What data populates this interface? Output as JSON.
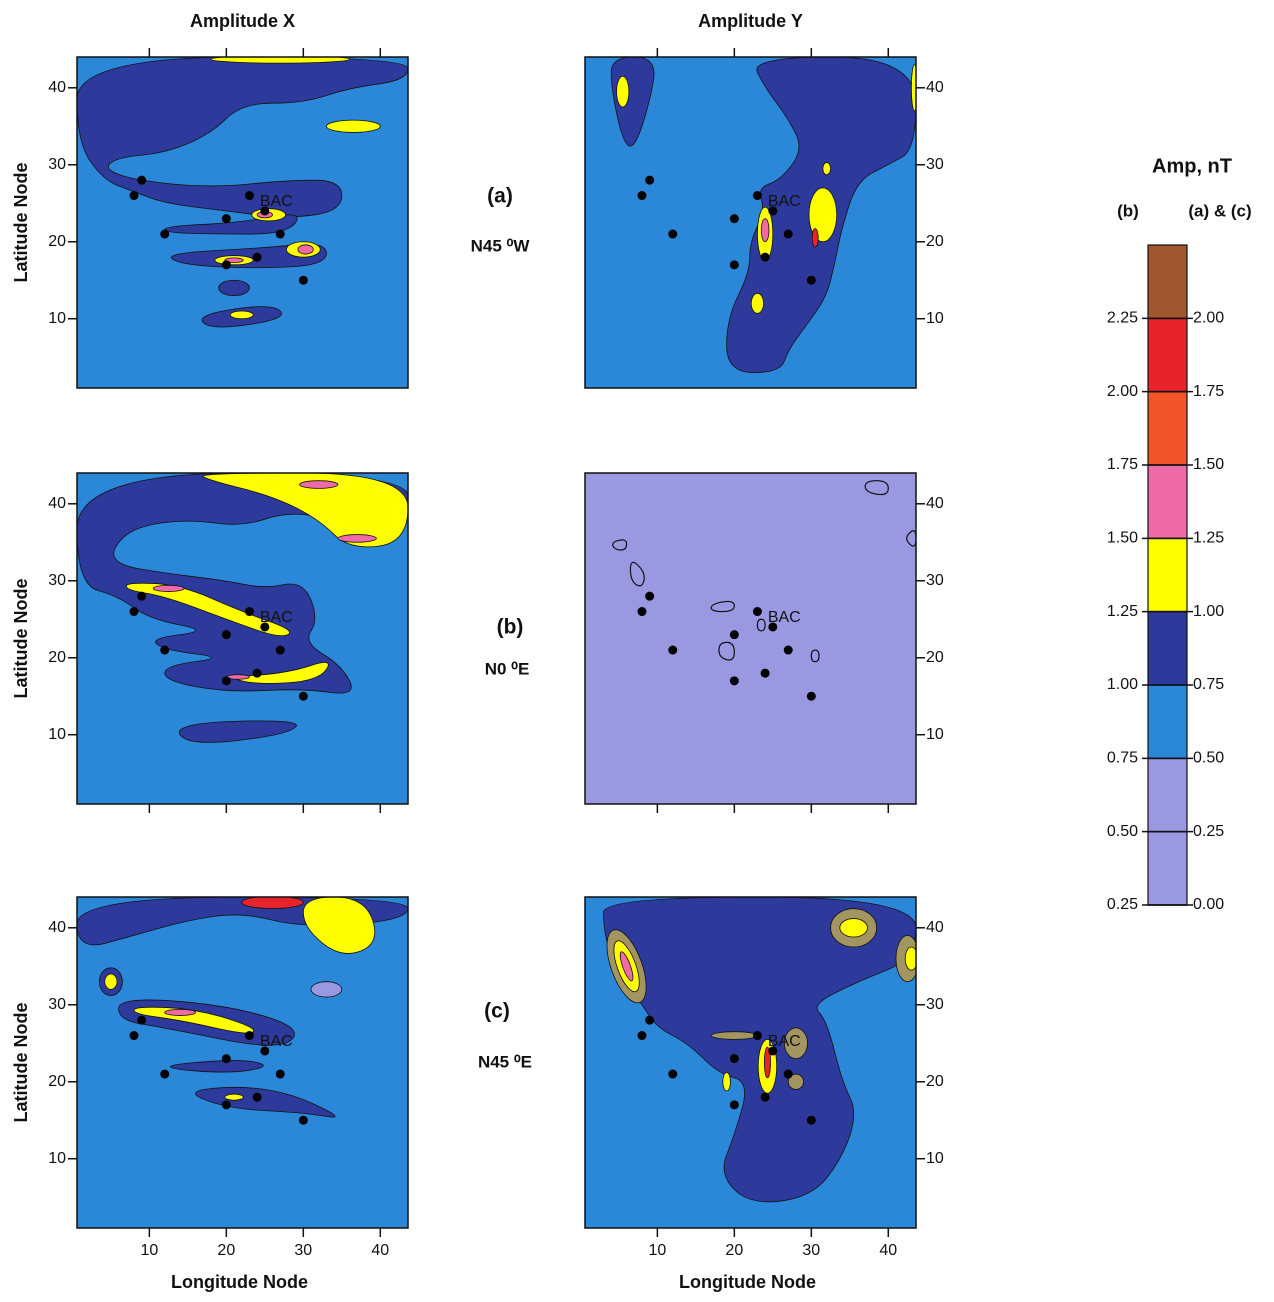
{
  "chart_data": [
    {
      "type": "scatter",
      "title": "Amplitude X",
      "ylabel": "Latitude Node",
      "x": [
        8,
        9,
        12,
        20,
        20,
        23,
        24,
        25,
        27,
        30
      ],
      "y": [
        26,
        28,
        21,
        23,
        17,
        26,
        18,
        24,
        21,
        15
      ],
      "annotations": [
        "BAC"
      ],
      "xlim": [
        0.6,
        43.6
      ],
      "ylim": [
        1,
        44
      ],
      "xticks": [
        10,
        20,
        30,
        40
      ],
      "yticks": [
        10,
        20,
        30,
        40
      ],
      "xtick_side": "top",
      "ytick_side": "left",
      "show_xtick_labels": false,
      "background": "#2b88d9"
    },
    {
      "type": "scatter",
      "title": "Amplitude Y",
      "x": [
        8,
        9,
        12,
        20,
        20,
        23,
        24,
        25,
        27,
        30
      ],
      "y": [
        26,
        28,
        21,
        23,
        17,
        26,
        18,
        24,
        21,
        15
      ],
      "annotations": [
        "BAC"
      ],
      "xlim": [
        0.6,
        43.6
      ],
      "ylim": [
        1,
        44
      ],
      "xticks": [
        10,
        20,
        30,
        40
      ],
      "yticks": [
        10,
        20,
        30,
        40
      ],
      "xtick_side": "top",
      "ytick_side": "right",
      "show_xtick_labels": false,
      "background": "#2b88d9"
    },
    {
      "type": "scatter",
      "ylabel": "Latitude Node",
      "x": [
        8,
        9,
        12,
        20,
        20,
        23,
        24,
        25,
        27,
        30
      ],
      "y": [
        26,
        28,
        21,
        23,
        17,
        26,
        18,
        24,
        21,
        15
      ],
      "annotations": [
        "BAC"
      ],
      "xlim": [
        0.6,
        43.6
      ],
      "ylim": [
        1,
        44
      ],
      "xticks": [
        10,
        20,
        30,
        40
      ],
      "yticks": [
        10,
        20,
        30,
        40
      ],
      "xtick_side": "bottom",
      "ytick_side": "left",
      "show_xtick_labels": false,
      "background": "#2b88d9"
    },
    {
      "type": "scatter",
      "x": [
        8,
        9,
        12,
        20,
        20,
        23,
        24,
        25,
        27,
        30
      ],
      "y": [
        26,
        28,
        21,
        23,
        17,
        26,
        18,
        24,
        21,
        15
      ],
      "annotations": [
        "BAC"
      ],
      "xlim": [
        0.6,
        43.6
      ],
      "ylim": [
        1,
        44
      ],
      "xticks": [
        10,
        20,
        30,
        40
      ],
      "yticks": [
        10,
        20,
        30,
        40
      ],
      "xtick_side": "bottom",
      "ytick_side": "right",
      "show_xtick_labels": false,
      "background": "#9b98e2"
    },
    {
      "type": "scatter",
      "ylabel": "Latitude Node",
      "xlabel": "Longitude Node",
      "x": [
        8,
        9,
        12,
        20,
        20,
        23,
        24,
        25,
        27,
        30
      ],
      "y": [
        26,
        28,
        21,
        23,
        17,
        26,
        18,
        24,
        21,
        15
      ],
      "annotations": [
        "BAC"
      ],
      "xlim": [
        0.6,
        43.6
      ],
      "ylim": [
        1,
        44
      ],
      "xticks": [
        10,
        20,
        30,
        40
      ],
      "yticks": [
        10,
        20,
        30,
        40
      ],
      "xtick_side": "bottom",
      "ytick_side": "left",
      "show_xtick_labels": true,
      "background": "#2b88d9"
    },
    {
      "type": "scatter",
      "xlabel": "Longitude Node",
      "x": [
        8,
        9,
        12,
        20,
        20,
        23,
        24,
        25,
        27,
        30
      ],
      "y": [
        26,
        28,
        21,
        23,
        17,
        26,
        18,
        24,
        21,
        15
      ],
      "annotations": [
        "BAC"
      ],
      "xlim": [
        0.6,
        43.6
      ],
      "ylim": [
        1,
        44
      ],
      "xticks": [
        10,
        20,
        30,
        40
      ],
      "yticks": [
        10,
        20,
        30,
        40
      ],
      "xtick_side": "bottom",
      "ytick_side": "right",
      "show_xtick_labels": true,
      "background": "#2b88d9"
    },
    {
      "type": "colorbar",
      "title": "Amp, nT",
      "colors": [
        "#9b98e2",
        "#9b98e2",
        "#2b88d9",
        "#2d3a9c",
        "#ffff00",
        "#f06aa8",
        "#f2552a",
        "#e8232b",
        "#a0562e"
      ],
      "scales": [
        {
          "label": "(b)",
          "lim": [
            0.25,
            2.5
          ],
          "ticks": [
            0.25,
            {
              "value": 0.5,
              "label": "0.50"
            },
            0.75,
            {
              "value": 1,
              "label": "1.00"
            },
            1.25,
            {
              "value": 1.5,
              "label": "1.50"
            },
            1.75,
            {
              "value": 2,
              "label": "2.00"
            },
            2.25
          ]
        },
        {
          "label": "(a) & (c)",
          "lim": [
            0,
            2.25
          ],
          "ticks": [
            {
              "value": 0,
              "label": "0.00"
            },
            0.25,
            {
              "value": 0.5,
              "label": "0.50"
            },
            0.75,
            {
              "value": 1,
              "label": "1.00"
            },
            1.25,
            {
              "value": 1.5,
              "label": "1.50"
            },
            1.75,
            {
              "value": 2,
              "label": "2.00"
            }
          ]
        }
      ]
    }
  ],
  "row_labels": [
    {
      "label": "(a)",
      "direction": "N45 ⁰W"
    },
    {
      "label": "(b)",
      "direction": "N0 ⁰E"
    },
    {
      "label": "(c)",
      "direction": "N45 ⁰E"
    }
  ]
}
